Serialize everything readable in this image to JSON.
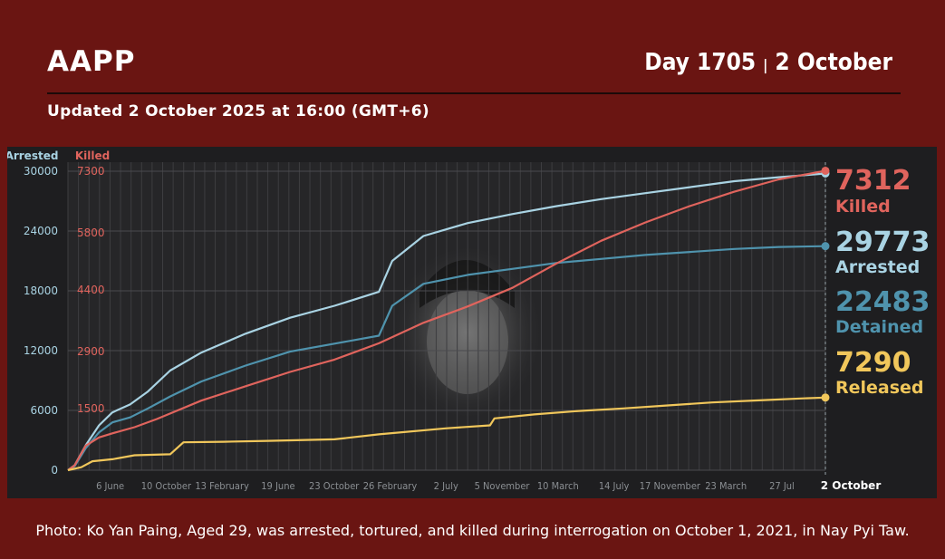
{
  "header": {
    "brand": "AAPP",
    "day": "Day 1705",
    "separator": "|",
    "date": "2 October",
    "updated": "Updated 2 October 2025 at 16:00 (GMT+6)"
  },
  "caption": "Photo: Ko Yan Paing, Aged 29, was arrested, tortured, and killed during interrogation on October 1, 2021, in Nay Pyi Taw.",
  "colors": {
    "background": "#6a1512",
    "chart_bg": "#1e1e20",
    "arrested": "#a9d3e3",
    "detained": "#4f93ad",
    "killed": "#e0645d",
    "released": "#f1c75b"
  },
  "chart_data": {
    "type": "line",
    "axis_left_titles": [
      "Arrested",
      "Killed"
    ],
    "y_left_ticks": [
      0,
      6000,
      12000,
      18000,
      24000,
      30000
    ],
    "y_killed_ticks": [
      1500,
      2900,
      4400,
      5800,
      7300
    ],
    "ylim_arrested": [
      0,
      30000
    ],
    "ylim_killed": [
      0,
      7300
    ],
    "x_tick_labels": [
      "6 June",
      "10 October",
      "13 February",
      "19 June",
      "23 October",
      "26 February",
      "2 July",
      "5 November",
      "10 March",
      "14 July",
      "17 November",
      "23 March",
      "27 Jul"
    ],
    "x_end_label": "2 October",
    "x_day_range": [
      0,
      1705
    ],
    "x_tick_days": [
      95,
      221,
      347,
      473,
      599,
      725,
      851,
      977,
      1103,
      1229,
      1355,
      1481,
      1607
    ],
    "grid": true,
    "series": [
      {
        "name": "Arrested",
        "key": "arrested",
        "axis": "left",
        "end_value": 29773,
        "points": [
          [
            0,
            0
          ],
          [
            15,
            500
          ],
          [
            40,
            2500
          ],
          [
            70,
            4500
          ],
          [
            100,
            5800
          ],
          [
            140,
            6600
          ],
          [
            180,
            7900
          ],
          [
            230,
            10000
          ],
          [
            300,
            11800
          ],
          [
            400,
            13700
          ],
          [
            500,
            15300
          ],
          [
            600,
            16500
          ],
          [
            700,
            17900
          ],
          [
            730,
            21000
          ],
          [
            800,
            23500
          ],
          [
            900,
            24800
          ],
          [
            1000,
            25700
          ],
          [
            1100,
            26500
          ],
          [
            1200,
            27200
          ],
          [
            1300,
            27800
          ],
          [
            1400,
            28400
          ],
          [
            1500,
            29000
          ],
          [
            1600,
            29400
          ],
          [
            1705,
            29773
          ]
        ]
      },
      {
        "name": "Detained",
        "key": "detained",
        "axis": "left",
        "end_value": 22483,
        "points": [
          [
            0,
            0
          ],
          [
            15,
            400
          ],
          [
            40,
            2200
          ],
          [
            70,
            3800
          ],
          [
            100,
            4800
          ],
          [
            140,
            5300
          ],
          [
            180,
            6200
          ],
          [
            230,
            7400
          ],
          [
            300,
            8900
          ],
          [
            400,
            10500
          ],
          [
            500,
            11900
          ],
          [
            600,
            12700
          ],
          [
            700,
            13500
          ],
          [
            730,
            16500
          ],
          [
            800,
            18700
          ],
          [
            900,
            19600
          ],
          [
            1000,
            20200
          ],
          [
            1100,
            20800
          ],
          [
            1200,
            21200
          ],
          [
            1300,
            21600
          ],
          [
            1400,
            21900
          ],
          [
            1500,
            22200
          ],
          [
            1600,
            22400
          ],
          [
            1705,
            22483
          ]
        ]
      },
      {
        "name": "Killed",
        "key": "killed",
        "axis": "right",
        "end_value": 7312,
        "points": [
          [
            0,
            0
          ],
          [
            15,
            120
          ],
          [
            40,
            600
          ],
          [
            70,
            800
          ],
          [
            100,
            900
          ],
          [
            150,
            1050
          ],
          [
            200,
            1250
          ],
          [
            300,
            1700
          ],
          [
            400,
            2050
          ],
          [
            500,
            2400
          ],
          [
            600,
            2700
          ],
          [
            700,
            3100
          ],
          [
            800,
            3600
          ],
          [
            900,
            4000
          ],
          [
            1000,
            4450
          ],
          [
            1100,
            5050
          ],
          [
            1200,
            5600
          ],
          [
            1300,
            6050
          ],
          [
            1400,
            6450
          ],
          [
            1500,
            6800
          ],
          [
            1600,
            7100
          ],
          [
            1705,
            7312
          ]
        ]
      },
      {
        "name": "Released",
        "key": "released",
        "axis": "left",
        "end_value": 7290,
        "points": [
          [
            0,
            0
          ],
          [
            30,
            300
          ],
          [
            55,
            900
          ],
          [
            100,
            1100
          ],
          [
            150,
            1500
          ],
          [
            230,
            1600
          ],
          [
            260,
            2800
          ],
          [
            350,
            2850
          ],
          [
            450,
            2950
          ],
          [
            600,
            3100
          ],
          [
            700,
            3600
          ],
          [
            850,
            4200
          ],
          [
            950,
            4500
          ],
          [
            960,
            5200
          ],
          [
            1050,
            5600
          ],
          [
            1150,
            5950
          ],
          [
            1250,
            6200
          ],
          [
            1350,
            6500
          ],
          [
            1450,
            6800
          ],
          [
            1550,
            7000
          ],
          [
            1650,
            7200
          ],
          [
            1705,
            7290
          ]
        ]
      }
    ],
    "end_labels": [
      {
        "value": "7312",
        "label": "Killed",
        "key": "killed"
      },
      {
        "value": "29773",
        "label": "Arrested",
        "key": "arrested"
      },
      {
        "value": "22483",
        "label": "Detained",
        "key": "detained"
      },
      {
        "value": "7290",
        "label": "Released",
        "key": "released"
      }
    ]
  }
}
